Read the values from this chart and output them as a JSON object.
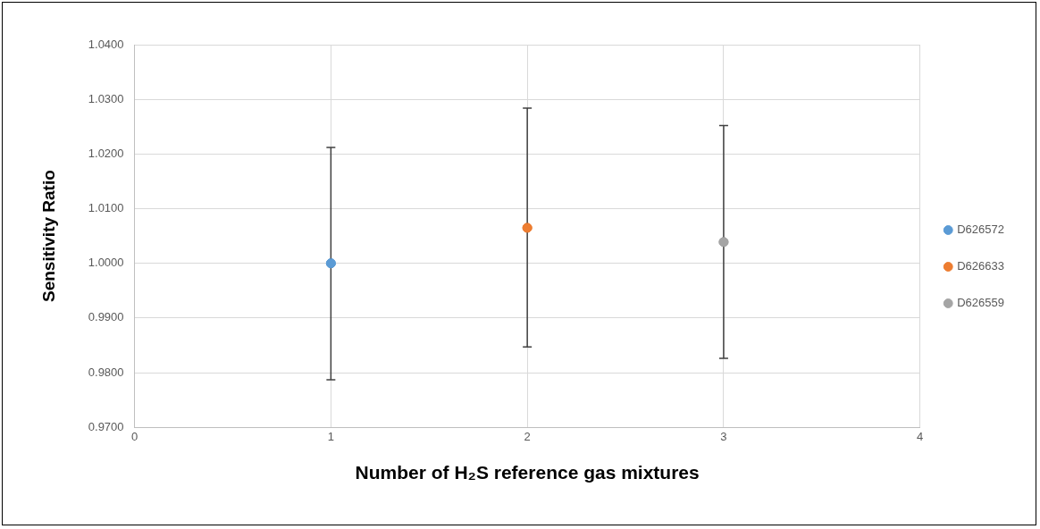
{
  "chart_data": {
    "type": "scatter",
    "xlabel": "Number of H₂S reference gas mixtures",
    "ylabel": "Sensitivity Ratio",
    "xlim": [
      0,
      4
    ],
    "xticks": [
      0,
      1,
      2,
      3,
      4
    ],
    "ylim": [
      0.97,
      1.04
    ],
    "yticks": [
      {
        "value": 0.97,
        "label": "0.9700"
      },
      {
        "value": 0.98,
        "label": "0.9800"
      },
      {
        "value": 0.99,
        "label": "0.9900"
      },
      {
        "value": 1.0,
        "label": "1.0000"
      },
      {
        "value": 1.01,
        "label": "1.0100"
      },
      {
        "value": 1.02,
        "label": "1.0200"
      },
      {
        "value": 1.03,
        "label": "1.0300"
      },
      {
        "value": 1.04,
        "label": "1.0400"
      }
    ],
    "grid": true,
    "legend": "right",
    "marker": "circle",
    "series": [
      {
        "name": "D626572",
        "color": "#5b9bd5",
        "x": [
          1
        ],
        "values": [
          1.0
        ],
        "errors": [
          [
            0.9787,
            1.0212
          ]
        ]
      },
      {
        "name": "D626633",
        "color": "#ed7d31",
        "x": [
          2
        ],
        "values": [
          1.0065
        ],
        "errors": [
          [
            0.9847,
            1.0284
          ]
        ]
      },
      {
        "name": "D626559",
        "color": "#a5a5a5",
        "x": [
          3
        ],
        "values": [
          1.0039
        ],
        "errors": [
          [
            0.9826,
            1.0252
          ]
        ]
      }
    ]
  }
}
